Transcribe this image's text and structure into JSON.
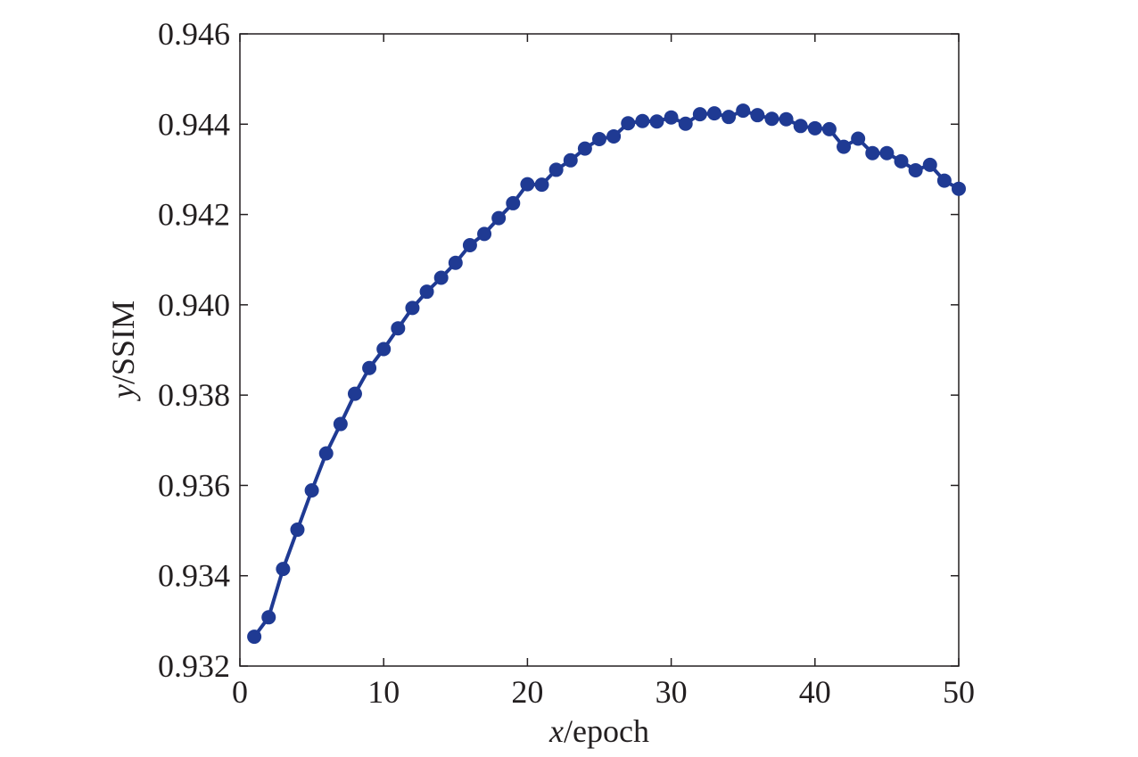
{
  "chart_data": {
    "type": "line",
    "title": "",
    "xlabel": {
      "var": "x",
      "unit": "/epoch"
    },
    "ylabel": {
      "var": "y",
      "unit": "/SSIM"
    },
    "xlim": [
      0,
      50
    ],
    "ylim": [
      0.932,
      0.946
    ],
    "xticks": [
      "0",
      "10",
      "20",
      "30",
      "40",
      "50"
    ],
    "yticks": [
      "0.932",
      "0.934",
      "0.936",
      "0.938",
      "0.940",
      "0.942",
      "0.944",
      "0.946"
    ],
    "grid": false,
    "legend": "none",
    "series": [
      {
        "color": "#1f3a93",
        "marker": "circle",
        "x": [
          1,
          2,
          3,
          4,
          5,
          6,
          7,
          8,
          9,
          10,
          11,
          12,
          13,
          14,
          15,
          16,
          17,
          18,
          19,
          20,
          21,
          22,
          23,
          24,
          25,
          26,
          27,
          28,
          29,
          30,
          31,
          32,
          33,
          34,
          35,
          36,
          37,
          38,
          39,
          40,
          41,
          42,
          43,
          44,
          45,
          46,
          47,
          48,
          49,
          50
        ],
        "y": [
          0.93265,
          0.93308,
          0.93415,
          0.93502,
          0.93589,
          0.93671,
          0.93736,
          0.93803,
          0.9386,
          0.93902,
          0.93948,
          0.93993,
          0.94029,
          0.9406,
          0.94093,
          0.94132,
          0.94157,
          0.94192,
          0.94225,
          0.94267,
          0.94266,
          0.94299,
          0.9432,
          0.94346,
          0.94367,
          0.94373,
          0.94402,
          0.94407,
          0.94406,
          0.94415,
          0.94401,
          0.94422,
          0.94424,
          0.94416,
          0.9443,
          0.9442,
          0.94412,
          0.94411,
          0.94396,
          0.94391,
          0.94389,
          0.9435,
          0.94368,
          0.94336,
          0.94336,
          0.94318,
          0.94298,
          0.9431,
          0.94275,
          0.94257
        ]
      }
    ]
  }
}
